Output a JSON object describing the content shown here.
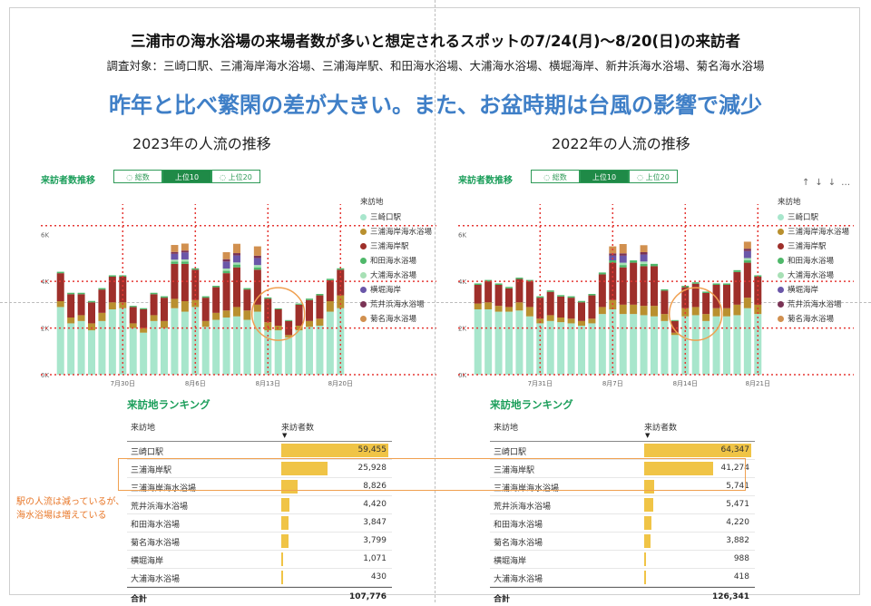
{
  "title": "三浦市の海水浴場の来場者数が多いと想定されるスポットの7/24(月)〜8/20(日)の来訪者",
  "subtitle": "調査対象：三崎口駅、三浦海岸海水浴場、三浦海岸駅、和田海水浴場、大浦海水浴場、横堀海岸、新井浜海水浴場、菊名海水浴場",
  "headline": "昨年と比べ繁閑の差が大きい。また、お盆時期は台風の影響で減少",
  "note_line1": "駅の人流は減っているが、",
  "note_line2": "海水浴場は増えている",
  "controls": {
    "up": "↑",
    "down": "↓↓",
    "more": "…"
  },
  "colors": {
    "三崎口駅": "#a8e6cc",
    "三浦海岸海水浴場": "#b9902f",
    "三浦海岸駅": "#9e2f2a",
    "和田海水浴場": "#4fb86a",
    "大浦海水浴場": "#a7e0b5",
    "横堀海岸": "#6a56a8",
    "荒井浜海水浴場": "#7a3355",
    "菊名海水浴場": "#d1904f",
    "grid": "#e53935",
    "highlight": "#f0a050",
    "rank_bar": "#f0c446",
    "accent_green": "#1b9e5a",
    "headline": "#3f7fc7"
  },
  "charts": [
    {
      "heading": "2023年の人流の推移",
      "visits_label": "来訪者数推移",
      "toggles": [
        {
          "label": "◌ 総数",
          "active": false
        },
        {
          "label": "上位10",
          "active": true
        },
        {
          "label": "◌ 上位20",
          "active": false
        }
      ],
      "legend_title": "来訪地",
      "legend": [
        "三崎口駅",
        "三浦海岸海水浴場",
        "三浦海岸駅",
        "和田海水浴場",
        "大浦海水浴場",
        "横堀海岸",
        "荒井浜海水浴場",
        "菊名海水浴場"
      ],
      "y_ticks": [
        "6K",
        "4K",
        "2K",
        "0K"
      ],
      "x_tick_labels": [
        {
          "label": "7月30日",
          "index": 6
        },
        {
          "label": "8月6日",
          "index": 13
        },
        {
          "label": "8月13日",
          "index": 20
        },
        {
          "label": "8月20日",
          "index": 27
        }
      ],
      "highlight_index": 21,
      "ranking_title": "来訪地ランキング",
      "ranking_headers": {
        "place": "来訪地",
        "visitors": "来訪者数"
      },
      "ranking": [
        {
          "name": "三崎口駅",
          "value": "59,455",
          "v": 59455
        },
        {
          "name": "三浦海岸駅",
          "value": "25,928",
          "v": 25928
        },
        {
          "name": "三浦海岸海水浴場",
          "value": "8,826",
          "v": 8826
        },
        {
          "name": "荒井浜海水浴場",
          "value": "4,420",
          "v": 4420
        },
        {
          "name": "和田海水浴場",
          "value": "3,847",
          "v": 3847
        },
        {
          "name": "菊名海水浴場",
          "value": "3,799",
          "v": 3799
        },
        {
          "name": "横堀海岸",
          "value": "1,071",
          "v": 1071
        },
        {
          "name": "大浦海水浴場",
          "value": "430",
          "v": 430
        }
      ],
      "total_label": "合計",
      "total_value": "107,776"
    },
    {
      "heading": "2022年の人流の推移",
      "visits_label": "来訪者数推移",
      "toggles": [
        {
          "label": "◌ 総数",
          "active": false
        },
        {
          "label": "上位10",
          "active": true
        },
        {
          "label": "◌ 上位20",
          "active": false
        }
      ],
      "legend_title": "来訪地",
      "legend": [
        "三崎口駅",
        "三浦海岸海水浴場",
        "三浦海岸駅",
        "和田海水浴場",
        "大浦海水浴場",
        "横堀海岸",
        "荒井浜海水浴場",
        "菊名海水浴場"
      ],
      "y_ticks": [
        "6K",
        "4K",
        "2K",
        "0K"
      ],
      "x_tick_labels": [
        {
          "label": "7月31日",
          "index": 6
        },
        {
          "label": "8月7日",
          "index": 13
        },
        {
          "label": "8月14日",
          "index": 20
        },
        {
          "label": "8月21日",
          "index": 27
        }
      ],
      "highlight_index": 21,
      "ranking_title": "来訪地ランキング",
      "ranking_headers": {
        "place": "来訪地",
        "visitors": "来訪者数"
      },
      "ranking": [
        {
          "name": "三崎口駅",
          "value": "64,347",
          "v": 64347
        },
        {
          "name": "三浦海岸駅",
          "value": "41,274",
          "v": 41274
        },
        {
          "name": "三浦海岸海水浴場",
          "value": "5,741",
          "v": 5741
        },
        {
          "name": "荒井浜海水浴場",
          "value": "5,471",
          "v": 5471
        },
        {
          "name": "和田海水浴場",
          "value": "4,220",
          "v": 4220
        },
        {
          "name": "菊名海水浴場",
          "value": "3,882",
          "v": 3882
        },
        {
          "name": "横堀海岸",
          "value": "988",
          "v": 988
        },
        {
          "name": "大浦海水浴場",
          "value": "418",
          "v": 418
        }
      ],
      "total_label": "合計",
      "total_value": "126,341"
    }
  ],
  "chart_data": [
    {
      "type": "bar",
      "stacked": true,
      "title": "2023年の人流の推移",
      "ylim": [
        0,
        7000
      ],
      "series": [
        {
          "name": "三崎口駅",
          "values": [
            2900,
            2200,
            2300,
            1900,
            2300,
            2800,
            2850,
            2000,
            1800,
            2300,
            2000,
            2850,
            2700,
            2900,
            2050,
            2350,
            2450,
            2500,
            2350,
            2700,
            1900,
            1900,
            1600,
            1900,
            2050,
            2100,
            2700,
            2850
          ]
        },
        {
          "name": "三浦海岸海水浴場",
          "values": [
            250,
            250,
            250,
            300,
            350,
            300,
            250,
            200,
            200,
            250,
            300,
            400,
            450,
            300,
            250,
            300,
            300,
            400,
            400,
            300,
            350,
            200,
            100,
            200,
            250,
            300,
            450,
            550
          ]
        },
        {
          "name": "三浦海岸駅",
          "values": [
            1200,
            1000,
            900,
            900,
            1000,
            1100,
            1100,
            700,
            800,
            900,
            1000,
            1500,
            1600,
            1300,
            1000,
            1100,
            1600,
            1700,
            900,
            1500,
            1000,
            700,
            600,
            900,
            900,
            1000,
            900,
            1100
          ]
        },
        {
          "name": "和田海水浴場",
          "values": [
            60,
            60,
            60,
            60,
            60,
            60,
            60,
            50,
            50,
            60,
            60,
            100,
            100,
            60,
            60,
            60,
            100,
            120,
            60,
            100,
            60,
            40,
            40,
            50,
            60,
            60,
            60,
            60
          ]
        },
        {
          "name": "大浦海水浴場",
          "values": [
            0,
            0,
            0,
            0,
            0,
            0,
            0,
            0,
            0,
            0,
            0,
            80,
            90,
            0,
            0,
            0,
            100,
            90,
            0,
            100,
            0,
            0,
            0,
            0,
            0,
            0,
            0,
            0
          ]
        },
        {
          "name": "横堀海岸",
          "values": [
            0,
            0,
            0,
            0,
            0,
            0,
            0,
            0,
            0,
            0,
            0,
            250,
            300,
            0,
            0,
            0,
            300,
            300,
            0,
            300,
            0,
            0,
            0,
            0,
            0,
            0,
            0,
            0
          ]
        },
        {
          "name": "荒井浜海水浴場",
          "values": [
            0,
            0,
            0,
            0,
            0,
            0,
            0,
            0,
            0,
            0,
            0,
            80,
            80,
            0,
            0,
            0,
            100,
            100,
            0,
            100,
            0,
            0,
            0,
            0,
            0,
            0,
            0,
            0
          ]
        },
        {
          "name": "菊名海水浴場",
          "values": [
            0,
            0,
            0,
            0,
            0,
            0,
            0,
            0,
            0,
            0,
            0,
            300,
            300,
            0,
            0,
            0,
            300,
            400,
            0,
            400,
            0,
            0,
            0,
            0,
            0,
            0,
            0,
            0
          ]
        }
      ]
    },
    {
      "type": "bar",
      "stacked": true,
      "title": "2022年の人流の推移",
      "ylim": [
        0,
        7000
      ],
      "series": [
        {
          "name": "三崎口駅",
          "values": [
            2800,
            2800,
            2700,
            2700,
            2750,
            2500,
            2200,
            2300,
            2250,
            2200,
            2100,
            2200,
            2600,
            2800,
            2600,
            2600,
            2550,
            2500,
            2300,
            1700,
            2500,
            2550,
            2300,
            2500,
            2500,
            2550,
            2850,
            2600
          ]
        },
        {
          "name": "三浦海岸海水浴場",
          "values": [
            250,
            300,
            250,
            200,
            350,
            400,
            200,
            250,
            200,
            200,
            200,
            200,
            300,
            400,
            400,
            400,
            400,
            450,
            300,
            100,
            350,
            350,
            300,
            350,
            350,
            450,
            450,
            400
          ]
        },
        {
          "name": "三浦海岸駅",
          "values": [
            800,
            900,
            900,
            800,
            1000,
            1100,
            900,
            1000,
            900,
            900,
            800,
            1000,
            1400,
            1600,
            1600,
            1800,
            1700,
            1700,
            1000,
            500,
            900,
            1000,
            900,
            1000,
            1000,
            1400,
            1500,
            1200
          ]
        },
        {
          "name": "和田海水浴場",
          "values": [
            60,
            60,
            60,
            60,
            60,
            60,
            60,
            60,
            60,
            60,
            60,
            60,
            80,
            100,
            100,
            100,
            100,
            100,
            60,
            40,
            60,
            60,
            60,
            60,
            60,
            80,
            100,
            60
          ]
        },
        {
          "name": "大浦海水浴場",
          "values": [
            0,
            0,
            0,
            0,
            0,
            0,
            0,
            0,
            0,
            0,
            0,
            0,
            0,
            0,
            100,
            0,
            100,
            0,
            0,
            0,
            0,
            0,
            0,
            0,
            0,
            0,
            100,
            0
          ]
        },
        {
          "name": "横堀海岸",
          "values": [
            0,
            0,
            0,
            0,
            0,
            0,
            0,
            0,
            0,
            0,
            0,
            0,
            0,
            200,
            300,
            0,
            300,
            0,
            0,
            0,
            0,
            0,
            0,
            0,
            0,
            0,
            300,
            0
          ]
        },
        {
          "name": "荒井浜海水浴場",
          "values": [
            0,
            0,
            0,
            0,
            0,
            0,
            0,
            0,
            0,
            0,
            0,
            0,
            0,
            100,
            100,
            0,
            100,
            0,
            0,
            0,
            0,
            0,
            0,
            0,
            0,
            0,
            100,
            0
          ]
        },
        {
          "name": "菊名海水浴場",
          "values": [
            0,
            0,
            0,
            0,
            0,
            0,
            0,
            0,
            0,
            0,
            0,
            0,
            0,
            300,
            400,
            0,
            300,
            0,
            0,
            0,
            0,
            0,
            0,
            0,
            0,
            0,
            300,
            0
          ]
        }
      ]
    }
  ]
}
